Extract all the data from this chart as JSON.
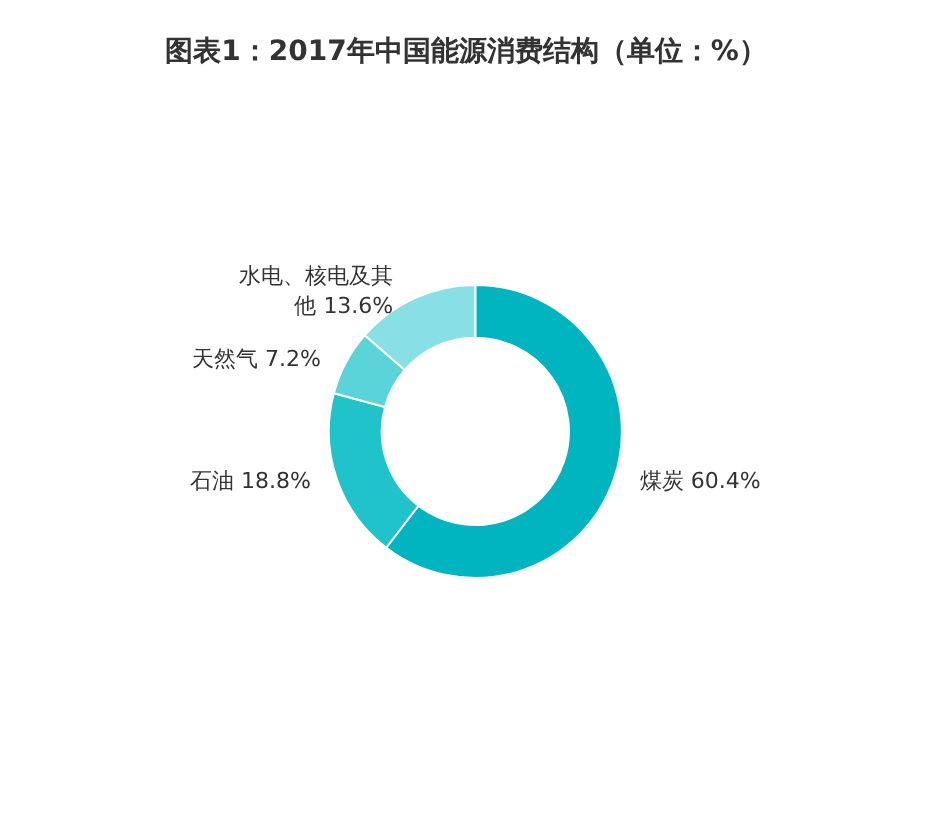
{
  "chart_data": {
    "type": "donut",
    "title": "图表1：2017年中国能源消费结构（单位：%）",
    "categories": [
      "煤炭",
      "石油",
      "天然气",
      "水电、核电及其他"
    ],
    "values": [
      60.4,
      18.8,
      7.2,
      13.6
    ],
    "value_labels": [
      "60.4%",
      "18.8%",
      "7.2%",
      "13.6%"
    ],
    "colors": [
      "#00b5bf",
      "#1fc3c9",
      "#5bd4d9",
      "#88e0e6"
    ],
    "legend": false
  }
}
